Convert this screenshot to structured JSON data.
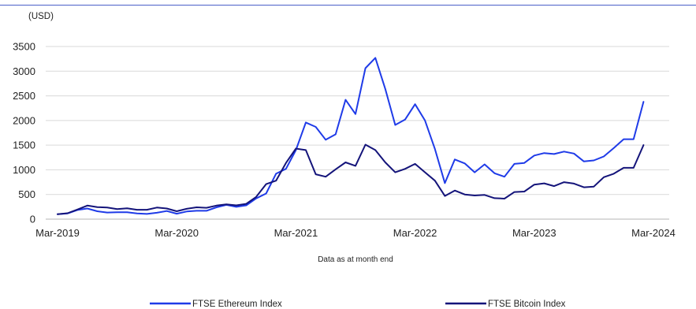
{
  "chart_data": {
    "type": "line",
    "ylabel": "(USD)",
    "xlabel": "Data as at month end",
    "ylim": [
      0,
      3500
    ],
    "yticks": [
      0,
      500,
      1000,
      1500,
      2000,
      2500,
      3000,
      3500
    ],
    "xticks": [
      "Mar-2019",
      "Mar-2020",
      "Mar-2021",
      "Mar-2022",
      "Mar-2023",
      "Mar-2024"
    ],
    "x_start": "Mar-2019",
    "x_end": "Mar-2024",
    "grid": true,
    "legend_position": "bottom",
    "series": [
      {
        "name": "FTSE Ethereum Index",
        "color": "#1f3be8",
        "values": [
          100,
          115,
          185,
          215,
          160,
          135,
          140,
          140,
          115,
          105,
          130,
          165,
          110,
          155,
          170,
          170,
          240,
          290,
          250,
          280,
          420,
          520,
          920,
          1020,
          1400,
          1960,
          1870,
          1610,
          1720,
          2420,
          2130,
          3060,
          3270,
          2640,
          1910,
          2020,
          2330,
          2000,
          1420,
          730,
          1210,
          1130,
          950,
          1110,
          930,
          860,
          1120,
          1140,
          1290,
          1340,
          1320,
          1370,
          1330,
          1170,
          1190,
          1270,
          1440,
          1620,
          1620,
          2380
        ]
      },
      {
        "name": "FTSE Bitcoin Index",
        "color": "#14147a",
        "values": [
          100,
          120,
          195,
          275,
          245,
          235,
          205,
          220,
          190,
          190,
          235,
          215,
          160,
          210,
          240,
          230,
          275,
          300,
          280,
          310,
          450,
          710,
          780,
          1140,
          1430,
          1400,
          910,
          860,
          1010,
          1150,
          1080,
          1510,
          1400,
          1150,
          950,
          1020,
          1120,
          950,
          780,
          470,
          580,
          500,
          480,
          490,
          425,
          415,
          550,
          560,
          700,
          725,
          670,
          750,
          720,
          645,
          660,
          850,
          920,
          1040,
          1040,
          1500
        ]
      }
    ]
  }
}
